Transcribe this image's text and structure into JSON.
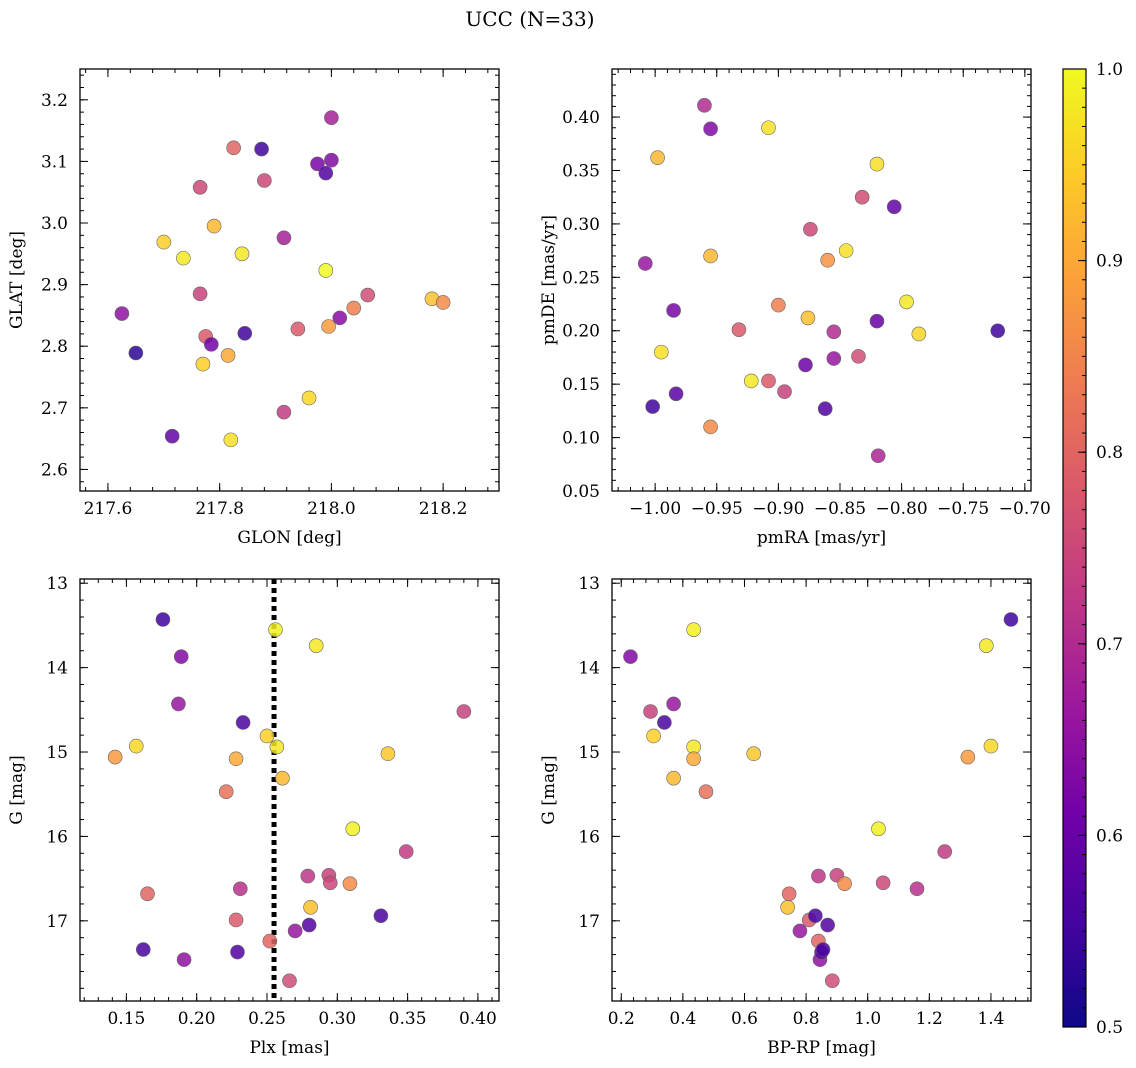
{
  "figure": {
    "title": "UCC (N=33)"
  },
  "colorbar": {
    "min": 0.5,
    "max": 1.0,
    "ticks": [
      "0.5",
      "0.6",
      "0.7",
      "0.8",
      "0.9",
      "1.0"
    ],
    "colormap": "plasma",
    "stops": [
      "#0d0887",
      "#46039f",
      "#7201a8",
      "#9c179e",
      "#bd3786",
      "#d8576b",
      "#ed7953",
      "#fb9f3a",
      "#fdca26",
      "#f0f921"
    ]
  },
  "chart_data": [
    {
      "type": "scatter",
      "id": "glon-glat",
      "xlabel": "GLON [deg]",
      "ylabel": "GLAT [deg]",
      "xlim": [
        217.55,
        218.3
      ],
      "ylim": [
        2.565,
        3.25
      ],
      "xticks": [
        217.6,
        217.8,
        218.0,
        218.2
      ],
      "xtick_labels": [
        "217.6",
        "217.8",
        "218.0",
        "218.2"
      ],
      "yticks": [
        2.6,
        2.7,
        2.8,
        2.9,
        3.0,
        3.1,
        3.2
      ],
      "ytick_labels": [
        "2.6",
        "2.7",
        "2.8",
        "2.9",
        "3.0",
        "3.1",
        "3.2"
      ],
      "points": [
        {
          "x": 217.625,
          "y": 2.853,
          "c": 0.65
        },
        {
          "x": 217.65,
          "y": 2.789,
          "c": 0.53
        },
        {
          "x": 217.7,
          "y": 2.969,
          "c": 0.95
        },
        {
          "x": 217.715,
          "y": 2.654,
          "c": 0.59
        },
        {
          "x": 217.735,
          "y": 2.943,
          "c": 0.98
        },
        {
          "x": 217.765,
          "y": 3.058,
          "c": 0.75
        },
        {
          "x": 217.765,
          "y": 2.885,
          "c": 0.74
        },
        {
          "x": 217.77,
          "y": 2.771,
          "c": 0.95
        },
        {
          "x": 217.775,
          "y": 2.816,
          "c": 0.78
        },
        {
          "x": 217.785,
          "y": 2.803,
          "c": 0.61
        },
        {
          "x": 217.79,
          "y": 2.995,
          "c": 0.92
        },
        {
          "x": 217.815,
          "y": 2.785,
          "c": 0.9
        },
        {
          "x": 217.82,
          "y": 2.648,
          "c": 0.97
        },
        {
          "x": 217.825,
          "y": 3.122,
          "c": 0.8
        },
        {
          "x": 217.84,
          "y": 2.95,
          "c": 0.98
        },
        {
          "x": 217.845,
          "y": 2.821,
          "c": 0.55
        },
        {
          "x": 217.875,
          "y": 3.12,
          "c": 0.55
        },
        {
          "x": 217.88,
          "y": 3.069,
          "c": 0.75
        },
        {
          "x": 217.915,
          "y": 2.976,
          "c": 0.68
        },
        {
          "x": 217.915,
          "y": 2.693,
          "c": 0.73
        },
        {
          "x": 217.94,
          "y": 2.828,
          "c": 0.78
        },
        {
          "x": 217.96,
          "y": 2.716,
          "c": 0.96
        },
        {
          "x": 217.975,
          "y": 3.096,
          "c": 0.62
        },
        {
          "x": 217.99,
          "y": 2.923,
          "c": 1.0
        },
        {
          "x": 217.99,
          "y": 3.081,
          "c": 0.57
        },
        {
          "x": 217.995,
          "y": 2.832,
          "c": 0.88
        },
        {
          "x": 218.0,
          "y": 3.102,
          "c": 0.63
        },
        {
          "x": 218.0,
          "y": 3.171,
          "c": 0.68
        },
        {
          "x": 218.015,
          "y": 2.846,
          "c": 0.64
        },
        {
          "x": 218.04,
          "y": 2.862,
          "c": 0.84
        },
        {
          "x": 218.065,
          "y": 2.883,
          "c": 0.76
        },
        {
          "x": 218.18,
          "y": 2.877,
          "c": 0.93
        },
        {
          "x": 218.2,
          "y": 2.871,
          "c": 0.86
        }
      ]
    },
    {
      "type": "scatter",
      "id": "pmra-pmde",
      "xlabel": "pmRA [mas/yr]",
      "ylabel": "pmDE [mas/yr]",
      "xlim": [
        -1.035,
        -0.695
      ],
      "ylim": [
        0.05,
        0.445
      ],
      "xticks": [
        -1.0,
        -0.95,
        -0.9,
        -0.85,
        -0.8,
        -0.75,
        -0.7
      ],
      "xtick_labels": [
        "−1.00",
        "−0.95",
        "−0.90",
        "−0.85",
        "−0.80",
        "−0.75",
        "−0.70"
      ],
      "yticks": [
        0.05,
        0.1,
        0.15,
        0.2,
        0.25,
        0.3,
        0.35,
        0.4
      ],
      "ytick_labels": [
        "0.05",
        "0.10",
        "0.15",
        "0.20",
        "0.25",
        "0.30",
        "0.35",
        "0.40"
      ],
      "points": [
        {
          "x": -1.008,
          "y": 0.263,
          "c": 0.66
        },
        {
          "x": -1.002,
          "y": 0.129,
          "c": 0.55
        },
        {
          "x": -0.998,
          "y": 0.362,
          "c": 0.92
        },
        {
          "x": -0.995,
          "y": 0.18,
          "c": 0.97
        },
        {
          "x": -0.985,
          "y": 0.219,
          "c": 0.62
        },
        {
          "x": -0.983,
          "y": 0.141,
          "c": 0.58
        },
        {
          "x": -0.96,
          "y": 0.411,
          "c": 0.7
        },
        {
          "x": -0.955,
          "y": 0.389,
          "c": 0.63
        },
        {
          "x": -0.955,
          "y": 0.27,
          "c": 0.92
        },
        {
          "x": -0.955,
          "y": 0.11,
          "c": 0.86
        },
        {
          "x": -0.932,
          "y": 0.201,
          "c": 0.78
        },
        {
          "x": -0.922,
          "y": 0.153,
          "c": 0.98
        },
        {
          "x": -0.908,
          "y": 0.39,
          "c": 0.97
        },
        {
          "x": -0.908,
          "y": 0.153,
          "c": 0.78
        },
        {
          "x": -0.9,
          "y": 0.224,
          "c": 0.84
        },
        {
          "x": -0.895,
          "y": 0.143,
          "c": 0.74
        },
        {
          "x": -0.878,
          "y": 0.168,
          "c": 0.6
        },
        {
          "x": -0.876,
          "y": 0.212,
          "c": 0.93
        },
        {
          "x": -0.874,
          "y": 0.295,
          "c": 0.75
        },
        {
          "x": -0.862,
          "y": 0.127,
          "c": 0.57
        },
        {
          "x": -0.86,
          "y": 0.266,
          "c": 0.87
        },
        {
          "x": -0.855,
          "y": 0.199,
          "c": 0.7
        },
        {
          "x": -0.855,
          "y": 0.174,
          "c": 0.66
        },
        {
          "x": -0.845,
          "y": 0.275,
          "c": 0.97
        },
        {
          "x": -0.835,
          "y": 0.176,
          "c": 0.76
        },
        {
          "x": -0.832,
          "y": 0.325,
          "c": 0.76
        },
        {
          "x": -0.82,
          "y": 0.356,
          "c": 0.97
        },
        {
          "x": -0.82,
          "y": 0.209,
          "c": 0.6
        },
        {
          "x": -0.819,
          "y": 0.083,
          "c": 0.69
        },
        {
          "x": -0.806,
          "y": 0.316,
          "c": 0.59
        },
        {
          "x": -0.796,
          "y": 0.227,
          "c": 0.98
        },
        {
          "x": -0.786,
          "y": 0.197,
          "c": 0.96
        },
        {
          "x": -0.722,
          "y": 0.2,
          "c": 0.55
        }
      ]
    },
    {
      "type": "scatter",
      "id": "plx-g",
      "xlabel": "Plx [mas]",
      "ylabel": "G [mag]",
      "xlim": [
        0.117,
        0.415
      ],
      "ylim": [
        17.95,
        12.95
      ],
      "y_inverted": true,
      "xticks": [
        0.15,
        0.2,
        0.25,
        0.3,
        0.35,
        0.4
      ],
      "xtick_labels": [
        "0.15",
        "0.20",
        "0.25",
        "0.30",
        "0.35",
        "0.40"
      ],
      "yticks": [
        13,
        14,
        15,
        16,
        17
      ],
      "ytick_labels": [
        "13",
        "14",
        "15",
        "16",
        "17"
      ],
      "vline": {
        "x": 0.255,
        "style": "dotted"
      },
      "points": [
        {
          "x": 0.142,
          "y": 15.06,
          "c": 0.88
        },
        {
          "x": 0.157,
          "y": 14.93,
          "c": 0.96
        },
        {
          "x": 0.162,
          "y": 17.34,
          "c": 0.56
        },
        {
          "x": 0.165,
          "y": 16.68,
          "c": 0.8
        },
        {
          "x": 0.176,
          "y": 13.43,
          "c": 0.55
        },
        {
          "x": 0.187,
          "y": 14.43,
          "c": 0.66
        },
        {
          "x": 0.189,
          "y": 13.87,
          "c": 0.63
        },
        {
          "x": 0.191,
          "y": 17.46,
          "c": 0.65
        },
        {
          "x": 0.221,
          "y": 15.47,
          "c": 0.82
        },
        {
          "x": 0.228,
          "y": 16.99,
          "c": 0.78
        },
        {
          "x": 0.228,
          "y": 15.08,
          "c": 0.9
        },
        {
          "x": 0.229,
          "y": 17.37,
          "c": 0.57
        },
        {
          "x": 0.231,
          "y": 16.62,
          "c": 0.71
        },
        {
          "x": 0.233,
          "y": 14.65,
          "c": 0.56
        },
        {
          "x": 0.25,
          "y": 14.81,
          "c": 0.95
        },
        {
          "x": 0.252,
          "y": 17.24,
          "c": 0.8
        },
        {
          "x": 0.256,
          "y": 13.55,
          "c": 0.99
        },
        {
          "x": 0.257,
          "y": 14.94,
          "c": 0.98
        },
        {
          "x": 0.261,
          "y": 15.31,
          "c": 0.92
        },
        {
          "x": 0.266,
          "y": 17.71,
          "c": 0.76
        },
        {
          "x": 0.27,
          "y": 17.12,
          "c": 0.66
        },
        {
          "x": 0.279,
          "y": 16.47,
          "c": 0.72
        },
        {
          "x": 0.28,
          "y": 17.05,
          "c": 0.57
        },
        {
          "x": 0.281,
          "y": 16.84,
          "c": 0.93
        },
        {
          "x": 0.285,
          "y": 13.74,
          "c": 0.98
        },
        {
          "x": 0.294,
          "y": 16.46,
          "c": 0.74
        },
        {
          "x": 0.295,
          "y": 16.55,
          "c": 0.75
        },
        {
          "x": 0.309,
          "y": 16.56,
          "c": 0.86
        },
        {
          "x": 0.311,
          "y": 15.91,
          "c": 0.99
        },
        {
          "x": 0.331,
          "y": 16.94,
          "c": 0.56
        },
        {
          "x": 0.336,
          "y": 15.02,
          "c": 0.94
        },
        {
          "x": 0.349,
          "y": 16.18,
          "c": 0.73
        },
        {
          "x": 0.39,
          "y": 14.52,
          "c": 0.74
        }
      ]
    },
    {
      "type": "scatter",
      "id": "bprp-g",
      "xlabel": "BP-RP [mag]",
      "ylabel": "G [mag]",
      "xlim": [
        0.17,
        1.53
      ],
      "ylim": [
        17.95,
        12.95
      ],
      "y_inverted": true,
      "xticks": [
        0.2,
        0.4,
        0.6,
        0.8,
        1.0,
        1.2,
        1.4
      ],
      "xtick_labels": [
        "0.2",
        "0.4",
        "0.6",
        "0.8",
        "1.0",
        "1.2",
        "1.4"
      ],
      "yticks": [
        13,
        14,
        15,
        16,
        17
      ],
      "ytick_labels": [
        "13",
        "14",
        "15",
        "16",
        "17"
      ],
      "points": [
        {
          "x": 0.23,
          "y": 13.87,
          "c": 0.63
        },
        {
          "x": 0.295,
          "y": 14.52,
          "c": 0.74
        },
        {
          "x": 0.305,
          "y": 14.81,
          "c": 0.95
        },
        {
          "x": 0.34,
          "y": 14.65,
          "c": 0.56
        },
        {
          "x": 0.37,
          "y": 14.43,
          "c": 0.66
        },
        {
          "x": 0.37,
          "y": 15.31,
          "c": 0.92
        },
        {
          "x": 0.435,
          "y": 13.55,
          "c": 0.99
        },
        {
          "x": 0.435,
          "y": 14.94,
          "c": 0.98
        },
        {
          "x": 0.435,
          "y": 15.08,
          "c": 0.9
        },
        {
          "x": 0.475,
          "y": 15.47,
          "c": 0.82
        },
        {
          "x": 0.63,
          "y": 15.02,
          "c": 0.94
        },
        {
          "x": 0.74,
          "y": 16.84,
          "c": 0.93
        },
        {
          "x": 0.745,
          "y": 16.68,
          "c": 0.8
        },
        {
          "x": 0.78,
          "y": 17.12,
          "c": 0.66
        },
        {
          "x": 0.81,
          "y": 16.99,
          "c": 0.78
        },
        {
          "x": 0.83,
          "y": 16.94,
          "c": 0.56
        },
        {
          "x": 0.84,
          "y": 16.47,
          "c": 0.72
        },
        {
          "x": 0.84,
          "y": 17.24,
          "c": 0.8
        },
        {
          "x": 0.845,
          "y": 17.46,
          "c": 0.65
        },
        {
          "x": 0.85,
          "y": 17.37,
          "c": 0.57
        },
        {
          "x": 0.855,
          "y": 17.34,
          "c": 0.56
        },
        {
          "x": 0.87,
          "y": 17.05,
          "c": 0.57
        },
        {
          "x": 0.885,
          "y": 17.71,
          "c": 0.76
        },
        {
          "x": 0.9,
          "y": 16.46,
          "c": 0.74
        },
        {
          "x": 0.925,
          "y": 16.56,
          "c": 0.86
        },
        {
          "x": 1.035,
          "y": 15.91,
          "c": 0.99
        },
        {
          "x": 1.05,
          "y": 16.55,
          "c": 0.75
        },
        {
          "x": 1.16,
          "y": 16.62,
          "c": 0.71
        },
        {
          "x": 1.25,
          "y": 16.18,
          "c": 0.73
        },
        {
          "x": 1.325,
          "y": 15.06,
          "c": 0.88
        },
        {
          "x": 1.385,
          "y": 13.74,
          "c": 0.98
        },
        {
          "x": 1.4,
          "y": 14.93,
          "c": 0.96
        },
        {
          "x": 1.465,
          "y": 13.43,
          "c": 0.55
        }
      ]
    }
  ]
}
